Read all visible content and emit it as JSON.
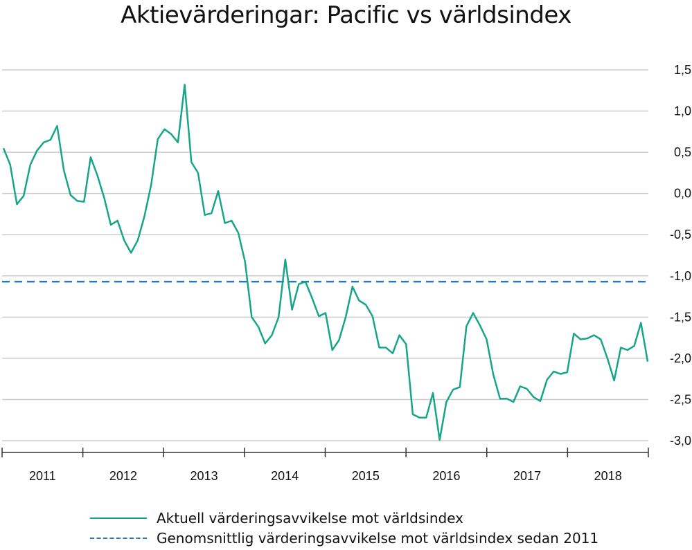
{
  "colors": {
    "actual": "#17a589",
    "average": "#2e75b6",
    "grid": "#cccccc",
    "axis": "#333333"
  },
  "chart_data": {
    "type": "line",
    "title": "Aktievärderingar: Pacific vs världsindex",
    "ylim": [
      -3.0,
      1.5
    ],
    "yticks": [
      1.5,
      1.0,
      0.5,
      0.0,
      -0.5,
      -1.0,
      -1.5,
      -2.0,
      -2.5,
      -3.0
    ],
    "ytick_labels": [
      "1,5",
      "1,0",
      "0,5",
      "0,0",
      "-0,5",
      "-1,0",
      "-1,5",
      "-2,0",
      "-2,5",
      "-3,0"
    ],
    "y_axis_position": "right",
    "grid": true,
    "legend_position": "bottom",
    "x_start_year": 2011,
    "x_end_year": 2018,
    "x_labels": [
      "2011",
      "2012",
      "2013",
      "2014",
      "2015",
      "2016",
      "2017",
      "2018"
    ],
    "series": [
      {
        "name": "Aktuell värderingsavvikelse mot världsindex",
        "style": "solid",
        "values": [
          0.55,
          0.35,
          -0.13,
          -0.03,
          0.35,
          0.52,
          0.62,
          0.65,
          0.82,
          0.28,
          -0.02,
          -0.09,
          -0.1,
          0.44,
          0.22,
          -0.05,
          -0.38,
          -0.33,
          -0.57,
          -0.72,
          -0.57,
          -0.28,
          0.1,
          0.66,
          0.78,
          0.72,
          0.62,
          1.32,
          0.38,
          0.25,
          -0.26,
          -0.24,
          0.03,
          -0.36,
          -0.33,
          -0.48,
          -0.83,
          -1.5,
          -1.62,
          -1.82,
          -1.72,
          -1.5,
          -0.8,
          -1.41,
          -1.1,
          -1.07,
          -1.27,
          -1.49,
          -1.45,
          -1.9,
          -1.78,
          -1.5,
          -1.13,
          -1.3,
          -1.35,
          -1.49,
          -1.87,
          -1.87,
          -1.94,
          -1.72,
          -1.83,
          -2.68,
          -2.72,
          -2.72,
          -2.42,
          -2.99,
          -2.53,
          -2.38,
          -2.35,
          -1.61,
          -1.45,
          -1.6,
          -1.77,
          -2.2,
          -2.49,
          -2.49,
          -2.53,
          -2.34,
          -2.37,
          -2.47,
          -2.52,
          -2.26,
          -2.16,
          -2.19,
          -2.17,
          -1.7,
          -1.77,
          -1.76,
          -1.72,
          -1.77,
          -2.0,
          -2.27,
          -1.87,
          -1.9,
          -1.85,
          -1.57,
          -2.04
        ]
      },
      {
        "name": "Genomsnittlig värderingsavvikelse mot världsindex sedan 2011",
        "style": "dashed",
        "values": [
          -1.07
        ]
      }
    ]
  }
}
